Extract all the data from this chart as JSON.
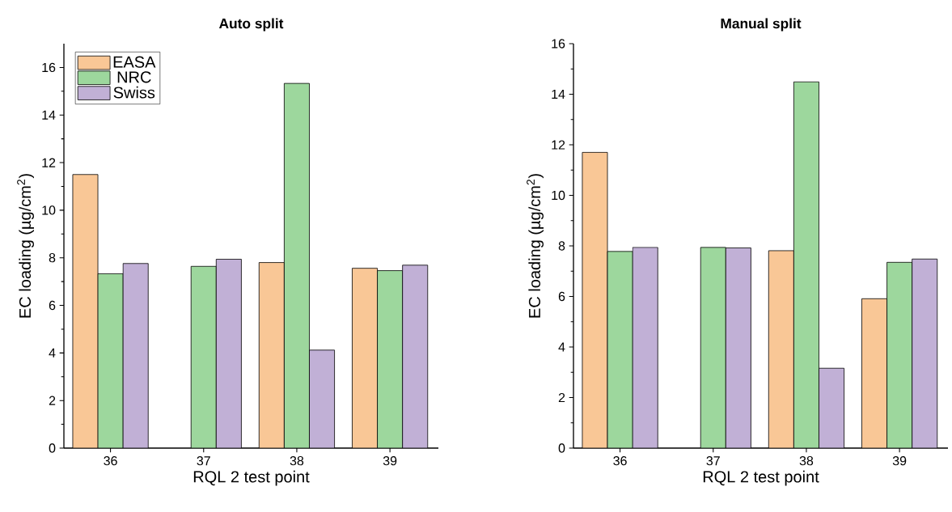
{
  "chart_data": [
    {
      "type": "bar",
      "title": "Auto split",
      "xlabel": "RQL 2 test point",
      "ylabel": "EC loading (µg/cm$^{2}$)",
      "categories": [
        "36",
        "37",
        "38",
        "39"
      ],
      "series": [
        {
          "name": "EASA",
          "color": "#f9c796",
          "values": [
            11.5,
            null,
            7.8,
            7.56
          ]
        },
        {
          "name": "NRC",
          "color": "#9dd79d",
          "values": [
            7.33,
            7.64,
            15.33,
            7.46
          ]
        },
        {
          "name": "Swiss",
          "color": "#c1b0d6",
          "values": [
            7.76,
            7.94,
            4.12,
            7.69
          ]
        }
      ],
      "ylim": [
        0,
        17
      ],
      "yticks": [
        0,
        2,
        4,
        6,
        8,
        10,
        12,
        14,
        16
      ],
      "grid": false,
      "legend": "top left"
    },
    {
      "type": "bar",
      "title": "Manual split",
      "xlabel": "RQL 2 test point",
      "ylabel": "EC loading (µg/cm$^{2}$)",
      "categories": [
        "36",
        "37",
        "38",
        "39"
      ],
      "series": [
        {
          "color": "#f9c796",
          "values": [
            11.7,
            null,
            7.81,
            5.91
          ]
        },
        {
          "color": "#9dd79d",
          "values": [
            7.78,
            7.94,
            14.49,
            7.35
          ]
        },
        {
          "color": "#c1b0d6",
          "values": [
            7.94,
            7.92,
            3.16,
            7.48
          ]
        }
      ],
      "ylim": [
        0,
        16
      ],
      "yticks": [
        0,
        2,
        4,
        6,
        8,
        10,
        12,
        14,
        16
      ],
      "grid": false,
      "legend": false
    }
  ]
}
